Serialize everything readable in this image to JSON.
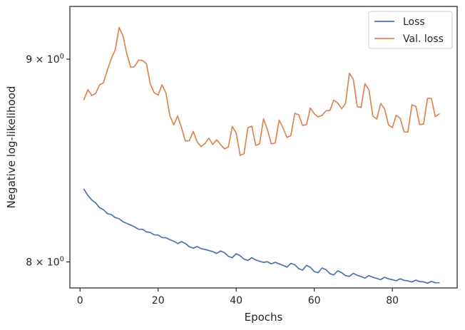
{
  "chart_data": {
    "type": "line",
    "xlabel": "Epochs",
    "ylabel": "Negative log-likelihood",
    "yscale": "log",
    "xlim": [
      -2.6,
      96.6
    ],
    "ylim": [
      7.88,
      9.28
    ],
    "grid": false,
    "legend_position": "top-right",
    "x_ticks": [
      {
        "value": 0,
        "label": "0"
      },
      {
        "value": 20,
        "label": "20"
      },
      {
        "value": 40,
        "label": "40"
      },
      {
        "value": 60,
        "label": "60"
      },
      {
        "value": 80,
        "label": "80"
      }
    ],
    "y_ticks": [
      {
        "value": 8,
        "base": "8",
        "times": "×",
        "mant": "10",
        "exp": "0"
      },
      {
        "value": 9,
        "base": "9",
        "times": "×",
        "mant": "10",
        "exp": "0"
      }
    ],
    "x": [
      1,
      2,
      3,
      4,
      5,
      6,
      7,
      8,
      9,
      10,
      11,
      12,
      13,
      14,
      15,
      16,
      17,
      18,
      19,
      20,
      21,
      22,
      23,
      24,
      25,
      26,
      27,
      28,
      29,
      30,
      31,
      32,
      33,
      34,
      35,
      36,
      37,
      38,
      39,
      40,
      41,
      42,
      43,
      44,
      45,
      46,
      47,
      48,
      49,
      50,
      51,
      52,
      53,
      54,
      55,
      56,
      57,
      58,
      59,
      60,
      61,
      62,
      63,
      64,
      65,
      66,
      67,
      68,
      69,
      70,
      71,
      72,
      73,
      74,
      75,
      76,
      77,
      78,
      79,
      80,
      81,
      82,
      83,
      84,
      85,
      86,
      87,
      88,
      89,
      90,
      91,
      92
    ],
    "series": [
      {
        "name": "Loss",
        "color": "#4c72b0",
        "values": [
          8.345,
          8.315,
          8.293,
          8.279,
          8.256,
          8.246,
          8.228,
          8.223,
          8.209,
          8.203,
          8.189,
          8.181,
          8.173,
          8.164,
          8.153,
          8.153,
          8.141,
          8.138,
          8.127,
          8.126,
          8.114,
          8.113,
          8.104,
          8.097,
          8.086,
          8.095,
          8.086,
          8.071,
          8.064,
          8.072,
          8.062,
          8.058,
          8.053,
          8.048,
          8.039,
          8.051,
          8.043,
          8.026,
          8.02,
          8.038,
          8.029,
          8.013,
          8.007,
          8.02,
          8.009,
          8.003,
          7.998,
          8.001,
          7.991,
          7.998,
          7.991,
          7.984,
          7.976,
          7.993,
          7.987,
          7.969,
          7.962,
          7.984,
          7.975,
          7.955,
          7.95,
          7.972,
          7.964,
          7.946,
          7.94,
          7.959,
          7.95,
          7.937,
          7.933,
          7.947,
          7.938,
          7.932,
          7.925,
          7.937,
          7.929,
          7.924,
          7.918,
          7.929,
          7.922,
          7.918,
          7.913,
          7.922,
          7.915,
          7.912,
          7.907,
          7.916,
          7.909,
          7.908,
          7.902,
          7.91,
          7.904,
          7.904
        ]
      },
      {
        "name": "Val. loss",
        "color": "#dd8452",
        "values": [
          8.79,
          8.842,
          8.812,
          8.822,
          8.866,
          8.878,
          8.942,
          9.002,
          9.048,
          9.167,
          9.123,
          9.027,
          8.957,
          8.962,
          8.995,
          8.993,
          8.977,
          8.87,
          8.826,
          8.814,
          8.867,
          8.824,
          8.71,
          8.663,
          8.708,
          8.647,
          8.582,
          8.584,
          8.63,
          8.578,
          8.554,
          8.57,
          8.596,
          8.565,
          8.588,
          8.565,
          8.543,
          8.553,
          8.655,
          8.622,
          8.511,
          8.519,
          8.649,
          8.656,
          8.56,
          8.568,
          8.693,
          8.639,
          8.568,
          8.572,
          8.687,
          8.648,
          8.6,
          8.609,
          8.721,
          8.714,
          8.66,
          8.664,
          8.748,
          8.719,
          8.703,
          8.711,
          8.734,
          8.736,
          8.788,
          8.774,
          8.744,
          8.771,
          8.926,
          8.895,
          8.756,
          8.751,
          8.873,
          8.84,
          8.707,
          8.692,
          8.771,
          8.744,
          8.663,
          8.649,
          8.711,
          8.696,
          8.627,
          8.627,
          8.764,
          8.757,
          8.664,
          8.667,
          8.797,
          8.797,
          8.705,
          8.718
        ]
      }
    ]
  }
}
